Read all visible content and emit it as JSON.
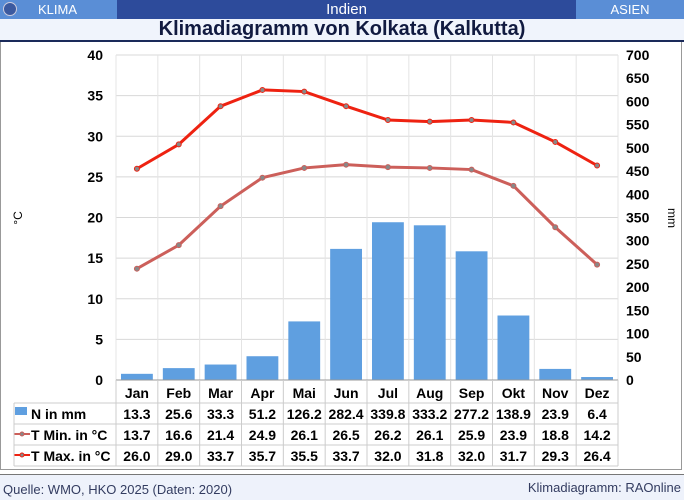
{
  "header": {
    "left": "KLIMA",
    "center": "Indien",
    "right": "ASIEN"
  },
  "title": "Klimadiagramm von Kolkata (Kalkutta)",
  "footer": {
    "source": "Quelle: WMO, HKO 2025 (Daten: 2020)",
    "credit": "Klimadiagramm: RAOnline"
  },
  "colors": {
    "precip": "#5f9fe0",
    "tmin": "#cc5f5a",
    "tmax": "#ee2211"
  },
  "chart_data": {
    "type": "bar+line",
    "categories": [
      "Jan",
      "Feb",
      "Mar",
      "Apr",
      "Mai",
      "Jun",
      "Jul",
      "Aug",
      "Sep",
      "Okt",
      "Nov",
      "Dez"
    ],
    "ylabel_left": "°C",
    "ylabel_right": "mm",
    "ylim_left": [
      0,
      40
    ],
    "yticks_left": [
      0,
      5,
      10,
      15,
      20,
      25,
      30,
      35,
      40
    ],
    "ylim_right": [
      0,
      700
    ],
    "yticks_right": [
      0,
      50,
      100,
      150,
      200,
      250,
      300,
      350,
      400,
      450,
      500,
      550,
      600,
      650,
      700
    ],
    "series": [
      {
        "name": "N in mm",
        "type": "bar",
        "axis": "right",
        "values": [
          13.3,
          25.6,
          33.3,
          51.2,
          126.2,
          282.4,
          339.8,
          333.2,
          277.2,
          138.9,
          23.9,
          6.4
        ],
        "labels": [
          "13.3",
          "25.6",
          "33.3",
          "51.2",
          "126.2",
          "282.4",
          "339.8",
          "333.2",
          "277.2",
          "138.9",
          "23.9",
          "6.4"
        ]
      },
      {
        "name": "T Min. in °C",
        "type": "line",
        "axis": "left",
        "values": [
          13.7,
          16.6,
          21.4,
          24.9,
          26.1,
          26.5,
          26.2,
          26.1,
          25.9,
          23.9,
          18.8,
          14.2
        ],
        "labels": [
          "13.7",
          "16.6",
          "21.4",
          "24.9",
          "26.1",
          "26.5",
          "26.2",
          "26.1",
          "25.9",
          "23.9",
          "18.8",
          "14.2"
        ]
      },
      {
        "name": "T Max. in °C",
        "type": "line",
        "axis": "left",
        "values": [
          26.0,
          29.0,
          33.7,
          35.7,
          35.5,
          33.7,
          32.0,
          31.8,
          32.0,
          31.7,
          29.3,
          26.4
        ],
        "labels": [
          "26.0",
          "29.0",
          "33.7",
          "35.7",
          "35.5",
          "33.7",
          "32.0",
          "31.8",
          "32.0",
          "31.7",
          "29.3",
          "26.4"
        ]
      }
    ]
  }
}
